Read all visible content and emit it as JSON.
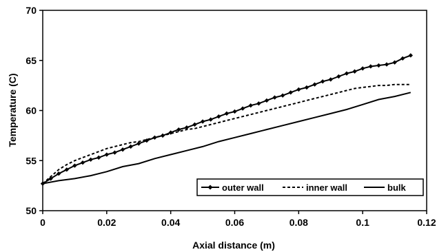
{
  "chart_data": {
    "type": "line",
    "title": "",
    "xlabel": "Axial distance (m)",
    "ylabel": "Temperature (C)",
    "xlim": [
      0,
      0.12
    ],
    "ylim": [
      50,
      70
    ],
    "x_ticks": [
      "0",
      "0.02",
      "0.04",
      "0.06",
      "0.08",
      "0.1",
      "0.12"
    ],
    "y_ticks": [
      "50",
      "55",
      "60",
      "65",
      "70"
    ],
    "grid": false,
    "legend_position": "bottom-right",
    "series": [
      {
        "name": "outer wall",
        "style": "solid-diamond",
        "x": [
          0,
          0.0025,
          0.005,
          0.0075,
          0.01,
          0.0125,
          0.015,
          0.0175,
          0.02,
          0.0225,
          0.025,
          0.0275,
          0.03,
          0.0325,
          0.035,
          0.0375,
          0.04,
          0.0425,
          0.045,
          0.0475,
          0.05,
          0.0525,
          0.055,
          0.0575,
          0.06,
          0.0625,
          0.065,
          0.0675,
          0.07,
          0.0725,
          0.075,
          0.0775,
          0.08,
          0.0825,
          0.085,
          0.0875,
          0.09,
          0.0925,
          0.095,
          0.0975,
          0.1,
          0.1025,
          0.105,
          0.1075,
          0.11,
          0.1125,
          0.115
        ],
        "values": [
          52.7,
          53.2,
          53.7,
          54.1,
          54.5,
          54.8,
          55.1,
          55.3,
          55.6,
          55.8,
          56.1,
          56.4,
          56.7,
          57.0,
          57.3,
          57.5,
          57.8,
          58.1,
          58.3,
          58.6,
          58.9,
          59.1,
          59.4,
          59.7,
          59.9,
          60.2,
          60.5,
          60.7,
          61.0,
          61.3,
          61.5,
          61.8,
          62.1,
          62.3,
          62.6,
          62.9,
          63.1,
          63.4,
          63.7,
          63.9,
          64.2,
          64.4,
          64.5,
          64.6,
          64.8,
          65.2,
          65.5
        ]
      },
      {
        "name": "inner wall",
        "style": "dashed",
        "x": [
          0,
          0.0025,
          0.005,
          0.0075,
          0.01,
          0.0125,
          0.015,
          0.0175,
          0.02,
          0.0225,
          0.025,
          0.0275,
          0.03,
          0.0325,
          0.035,
          0.0375,
          0.04,
          0.0425,
          0.045,
          0.0475,
          0.05,
          0.0525,
          0.055,
          0.0575,
          0.06,
          0.0625,
          0.065,
          0.0675,
          0.07,
          0.0725,
          0.075,
          0.0775,
          0.08,
          0.0825,
          0.085,
          0.0875,
          0.09,
          0.0925,
          0.095,
          0.0975,
          0.1,
          0.1025,
          0.105,
          0.1075,
          0.11,
          0.1125,
          0.115
        ],
        "values": [
          52.7,
          53.4,
          54.1,
          54.6,
          55.0,
          55.3,
          55.6,
          55.9,
          56.2,
          56.4,
          56.6,
          56.8,
          56.9,
          57.1,
          57.3,
          57.5,
          57.7,
          57.9,
          58.1,
          58.2,
          58.4,
          58.6,
          58.8,
          59.0,
          59.2,
          59.4,
          59.6,
          59.8,
          60.0,
          60.2,
          60.4,
          60.6,
          60.8,
          61.0,
          61.2,
          61.4,
          61.6,
          61.8,
          62.0,
          62.2,
          62.3,
          62.4,
          62.5,
          62.5,
          62.6,
          62.6,
          62.6
        ]
      },
      {
        "name": "bulk",
        "style": "solid",
        "x": [
          0,
          0.005,
          0.01,
          0.015,
          0.02,
          0.025,
          0.03,
          0.035,
          0.04,
          0.045,
          0.05,
          0.055,
          0.06,
          0.065,
          0.07,
          0.075,
          0.08,
          0.085,
          0.09,
          0.095,
          0.1,
          0.105,
          0.11,
          0.115
        ],
        "values": [
          52.7,
          53.0,
          53.2,
          53.5,
          53.9,
          54.4,
          54.7,
          55.2,
          55.6,
          56.0,
          56.4,
          56.9,
          57.3,
          57.7,
          58.1,
          58.5,
          58.9,
          59.3,
          59.7,
          60.1,
          60.6,
          61.1,
          61.4,
          61.8
        ]
      }
    ]
  }
}
